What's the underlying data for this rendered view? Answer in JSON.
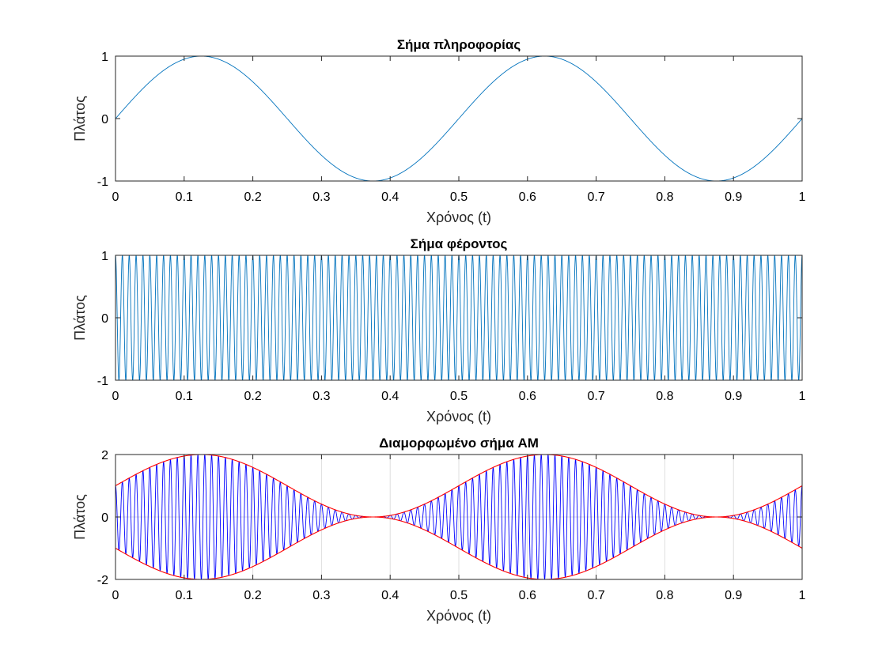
{
  "chart_data": [
    {
      "type": "line",
      "title": "Σήμα πληροφορίας",
      "xlabel": "Χρόνος (t)",
      "ylabel": "Πλάτος",
      "xlim": [
        0,
        1
      ],
      "ylim": [
        -1,
        1
      ],
      "xticks": [
        "0",
        "0.1",
        "0.2",
        "0.3",
        "0.4",
        "0.5",
        "0.6",
        "0.7",
        "0.8",
        "0.9",
        "1"
      ],
      "yticks": [
        "1",
        "0",
        "-1"
      ],
      "grid": false,
      "series": [
        {
          "kind": "sine",
          "frequency": 2,
          "amplitude": 1,
          "offset": 0,
          "color": "#0072BD"
        }
      ]
    },
    {
      "type": "line",
      "title": "Σήμα φέροντος",
      "xlabel": "Χρόνος (t)",
      "ylabel": "Πλάτος",
      "xlim": [
        0,
        1
      ],
      "ylim": [
        -1,
        1
      ],
      "xticks": [
        "0",
        "0.1",
        "0.2",
        "0.3",
        "0.4",
        "0.5",
        "0.6",
        "0.7",
        "0.8",
        "0.9",
        "1"
      ],
      "yticks": [
        "1",
        "0",
        "-1"
      ],
      "grid": false,
      "series": [
        {
          "kind": "cosine",
          "frequency": 100,
          "amplitude": 1,
          "offset": 0,
          "color": "#0072BD"
        }
      ]
    },
    {
      "type": "line",
      "title": "Διαμορφωμένο σήμα AM",
      "xlabel": "Χρόνος (t)",
      "ylabel": "Πλάτος",
      "xlim": [
        0,
        1
      ],
      "ylim": [
        -2,
        2
      ],
      "xticks": [
        "0",
        "0.1",
        "0.2",
        "0.3",
        "0.4",
        "0.5",
        "0.6",
        "0.7",
        "0.8",
        "0.9",
        "1"
      ],
      "yticks": [
        "2",
        "0",
        "-2"
      ],
      "grid": true,
      "series": [
        {
          "kind": "am",
          "message_frequency": 2,
          "carrier_frequency": 100,
          "offset": 1,
          "color": "#0000FF"
        },
        {
          "kind": "envelope_upper",
          "message_frequency": 2,
          "offset": 1,
          "color": "#FF0000"
        },
        {
          "kind": "envelope_lower",
          "message_frequency": 2,
          "offset": 1,
          "color": "#FF0000"
        }
      ]
    }
  ]
}
